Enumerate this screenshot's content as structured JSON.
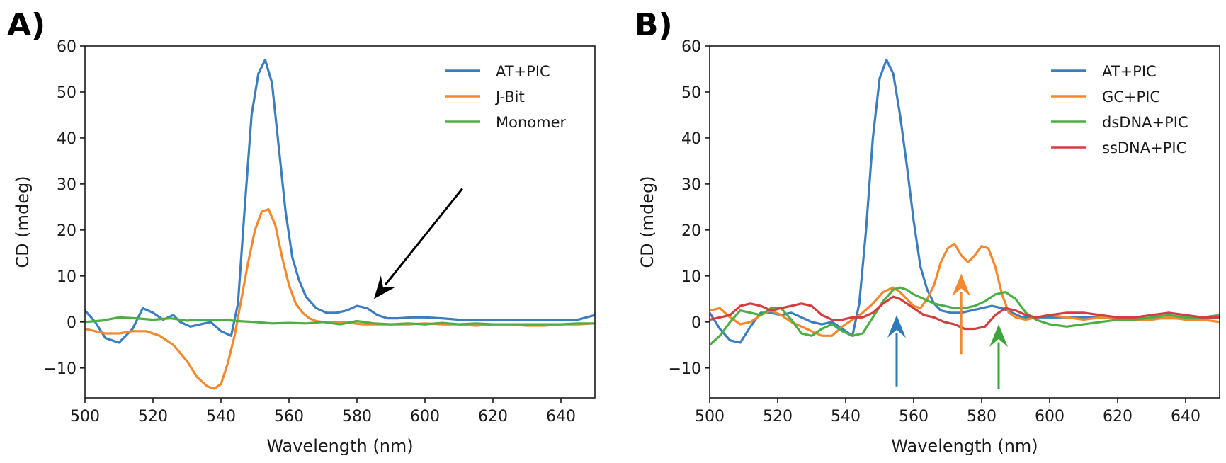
{
  "chart_data": [
    {
      "type": "line",
      "panel_label": "A)",
      "title": "",
      "xlabel": "Wavelength (nm)",
      "ylabel": "CD (mdeg)",
      "xlim": [
        500,
        650
      ],
      "ylim": [
        -16.5,
        60
      ],
      "xticks": [
        500,
        520,
        540,
        560,
        580,
        600,
        620,
        640
      ],
      "yticks": [
        -10,
        0,
        10,
        20,
        30,
        40,
        50,
        60
      ],
      "grid": false,
      "legend_position": "top-right",
      "series": [
        {
          "name": "AT+PIC",
          "color": "#3b7dbf",
          "x": [
            500,
            503,
            506,
            510,
            514,
            517,
            520,
            523,
            526,
            528,
            531,
            534,
            537,
            540,
            543,
            545,
            547,
            549,
            551,
            553,
            555,
            557,
            559,
            561,
            563,
            565,
            568,
            571,
            574,
            577,
            580,
            583,
            586,
            589,
            592,
            596,
            600,
            605,
            610,
            615,
            620,
            625,
            630,
            635,
            640,
            645,
            650
          ],
          "y": [
            2.5,
            0,
            -3.5,
            -4.5,
            -1.5,
            3,
            2,
            0.5,
            1.5,
            0,
            -1,
            -0.5,
            0,
            -2,
            -3,
            4,
            25,
            45,
            54,
            57,
            52,
            38,
            24,
            14,
            9,
            5.5,
            3,
            2,
            2,
            2.5,
            3.5,
            3,
            1.5,
            0.8,
            0.8,
            1,
            1,
            0.8,
            0.5,
            0.5,
            0.5,
            0.5,
            0.5,
            0.5,
            0.5,
            0.5,
            1.5
          ]
        },
        {
          "name": "J-Bit",
          "color": "#f4882d",
          "x": [
            500,
            503,
            506,
            510,
            514,
            518,
            522,
            526,
            530,
            533,
            536,
            538,
            540,
            542,
            544,
            546,
            548,
            550,
            552,
            554,
            556,
            558,
            560,
            562,
            564,
            566,
            568,
            570,
            572,
            575,
            578,
            582,
            586,
            590,
            595,
            600,
            605,
            610,
            615,
            620,
            625,
            630,
            635,
            640,
            645,
            650
          ],
          "y": [
            -1.5,
            -2,
            -2.5,
            -2.5,
            -2,
            -2,
            -3,
            -5,
            -8.5,
            -12,
            -14,
            -14.5,
            -13.5,
            -9,
            -3,
            5,
            13,
            20,
            24,
            24.5,
            21,
            14,
            8,
            4,
            2,
            0.8,
            0.2,
            0,
            0,
            0,
            -0.2,
            -0.5,
            -0.5,
            -0.5,
            -0.5,
            -0.3,
            -0.5,
            -0.5,
            -0.8,
            -0.5,
            -0.5,
            -0.8,
            -0.8,
            -0.5,
            -0.5,
            -0.3
          ]
        },
        {
          "name": "Monomer",
          "color": "#4caf43",
          "x": [
            500,
            505,
            510,
            515,
            520,
            525,
            530,
            535,
            540,
            545,
            550,
            555,
            560,
            565,
            570,
            575,
            580,
            585,
            590,
            595,
            600,
            605,
            610,
            615,
            620,
            625,
            630,
            635,
            640,
            645,
            650
          ],
          "y": [
            0,
            0.3,
            1,
            0.8,
            0.5,
            0.8,
            0.3,
            0.5,
            0.5,
            0.2,
            0,
            -0.3,
            -0.2,
            -0.3,
            0,
            -0.5,
            0.2,
            -0.3,
            -0.5,
            -0.3,
            -0.5,
            -0.2,
            -0.5,
            -0.3,
            -0.5,
            -0.5,
            -0.5,
            -0.5,
            -0.5,
            -0.3,
            -0.3
          ]
        }
      ],
      "annotations": [
        {
          "type": "arrow",
          "color": "#000000",
          "from": [
            611,
            29
          ],
          "to": [
            585,
            5
          ]
        }
      ]
    },
    {
      "type": "line",
      "panel_label": "B)",
      "title": "",
      "xlabel": "Wavelength (nm)",
      "ylabel": "CD (mdeg)",
      "xlim": [
        500,
        650
      ],
      "ylim": [
        -16.5,
        60
      ],
      "xticks": [
        500,
        520,
        540,
        560,
        580,
        600,
        620,
        640
      ],
      "yticks": [
        -10,
        0,
        10,
        20,
        30,
        40,
        50,
        60
      ],
      "grid": false,
      "legend_position": "top-right",
      "series": [
        {
          "name": "AT+PIC",
          "color": "#3b7dbf",
          "x": [
            500,
            503,
            506,
            509,
            512,
            515,
            518,
            521,
            524,
            527,
            530,
            533,
            536,
            539,
            542,
            544,
            546,
            548,
            550,
            552,
            554,
            556,
            558,
            560,
            562,
            564,
            566,
            568,
            571,
            574,
            577,
            580,
            583,
            586,
            589,
            592,
            596,
            600,
            605,
            610,
            615,
            620,
            625,
            630,
            635,
            640,
            645,
            650
          ],
          "y": [
            2,
            -1.5,
            -4,
            -4.5,
            -1,
            2,
            2,
            1.5,
            2,
            1,
            0,
            -0.5,
            0,
            -1.5,
            -3,
            4,
            20,
            40,
            53,
            57,
            54,
            45,
            34,
            22,
            12,
            7,
            4,
            2.5,
            2,
            2,
            2.5,
            3,
            3.5,
            3,
            2,
            1,
            1,
            1,
            1,
            1,
            1,
            0.8,
            0.8,
            0.8,
            0.8,
            0.8,
            1,
            1
          ]
        },
        {
          "name": "GC+PIC",
          "color": "#f4882d",
          "x": [
            500,
            503,
            506,
            509,
            512,
            515,
            518,
            521,
            524,
            527,
            530,
            533,
            536,
            539,
            542,
            545,
            548,
            551,
            554,
            556,
            558,
            560,
            562,
            564,
            566,
            568,
            570,
            572,
            574,
            576,
            578,
            580,
            582,
            584,
            586,
            588,
            590,
            593,
            596,
            600,
            605,
            610,
            615,
            620,
            625,
            630,
            635,
            640,
            645,
            650
          ],
          "y": [
            2.5,
            3,
            1,
            -0.5,
            0,
            1.5,
            2.5,
            1.5,
            0,
            -1,
            -2,
            -3,
            -3,
            -1,
            0.5,
            2,
            4,
            6.5,
            7.5,
            6.5,
            5,
            3.5,
            3,
            5,
            8,
            13,
            16,
            17,
            14.5,
            13,
            14.5,
            16.5,
            16,
            12,
            6,
            2,
            1,
            0.5,
            1,
            1.5,
            1,
            0.5,
            1,
            1,
            0.5,
            0.5,
            1,
            0.5,
            0.5,
            0
          ]
        },
        {
          "name": "dsDNA+PIC",
          "color": "#4caf43",
          "x": [
            500,
            503,
            506,
            509,
            512,
            515,
            518,
            521,
            524,
            527,
            530,
            533,
            536,
            539,
            542,
            545,
            548,
            551,
            554,
            556,
            558,
            560,
            563,
            566,
            569,
            572,
            575,
            578,
            581,
            584,
            587,
            590,
            593,
            596,
            600,
            605,
            610,
            615,
            620,
            625,
            630,
            635,
            640,
            645,
            650
          ],
          "y": [
            -5,
            -3,
            0,
            2.5,
            2,
            1.5,
            3,
            3,
            0.5,
            -2.5,
            -3,
            -1.5,
            -0.5,
            -2,
            -3,
            -2.5,
            1,
            4.5,
            7,
            7.5,
            7,
            6,
            5,
            4,
            3.5,
            3,
            3,
            3.5,
            4.5,
            6,
            6.5,
            5,
            2,
            0.5,
            -0.5,
            -1,
            -0.5,
            0,
            0.5,
            0.5,
            1,
            1.5,
            1,
            1,
            1.5
          ]
        },
        {
          "name": "ssDNA+PIC",
          "color": "#d43d3d",
          "x": [
            500,
            503,
            506,
            509,
            512,
            515,
            518,
            521,
            524,
            527,
            530,
            533,
            536,
            539,
            542,
            545,
            548,
            551,
            554,
            556,
            558,
            560,
            563,
            566,
            569,
            572,
            575,
            578,
            581,
            584,
            587,
            590,
            593,
            596,
            600,
            605,
            610,
            615,
            620,
            625,
            630,
            635,
            640,
            645,
            650
          ],
          "y": [
            0.5,
            1,
            1.5,
            3.5,
            4,
            3.5,
            2.5,
            3,
            3.5,
            4,
            3.5,
            1.5,
            0.5,
            0.5,
            1,
            1,
            2,
            4,
            5.5,
            5,
            4,
            3,
            1.5,
            1,
            0,
            -0.5,
            -1.5,
            -1.5,
            -1,
            1.5,
            3,
            2.5,
            1.5,
            1,
            1.5,
            2,
            2,
            1.5,
            1,
            1,
            1.5,
            2,
            1.5,
            1,
            1
          ]
        }
      ],
      "annotations": [
        {
          "type": "arrow",
          "color": "#2e7ab8",
          "from": [
            555,
            -14
          ],
          "to": [
            555,
            1.5
          ]
        },
        {
          "type": "arrow",
          "color": "#f4882d",
          "from": [
            574,
            -7
          ],
          "to": [
            574,
            10.5
          ]
        },
        {
          "type": "arrow",
          "color": "#3da33d",
          "from": [
            585,
            -14.5
          ],
          "to": [
            585,
            -0.5
          ]
        }
      ]
    }
  ]
}
